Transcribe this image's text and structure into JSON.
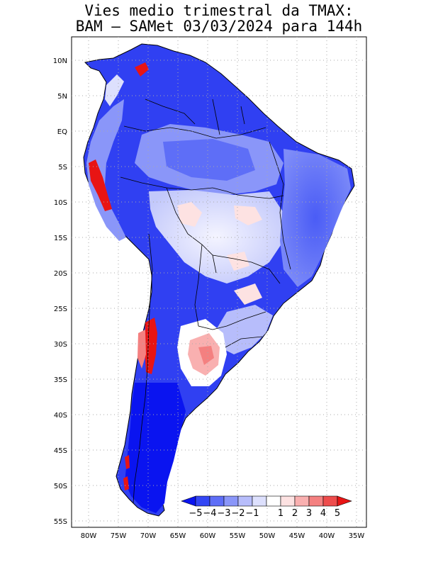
{
  "title_line1": "Vies medio trimestral da TMAX:",
  "title_line2": "BAM – SAMet 03/03/2024  para 144h",
  "map": {
    "lat_labels": [
      "10N",
      "5N",
      "EQ",
      "5S",
      "10S",
      "15S",
      "20S",
      "25S",
      "30S",
      "35S",
      "40S",
      "45S",
      "50S",
      "55S"
    ],
    "lon_labels": [
      "80W",
      "75W",
      "70W",
      "65W",
      "60W",
      "55W",
      "50W",
      "45W",
      "40W",
      "35W"
    ],
    "grid": true,
    "grid_style": "dotted"
  },
  "colorbar": {
    "labels": [
      "−5",
      "−4",
      "−3",
      "−2",
      "−1",
      "1",
      "2",
      "3",
      "4",
      "5"
    ],
    "colors": [
      "#0a14f0",
      "#3346f5",
      "#5e6ef7",
      "#8a96f9",
      "#b7bdfb",
      "#dde0fd",
      "#ffffff",
      "#fde2e2",
      "#f9b0b0",
      "#f48080",
      "#ee4c4c",
      "#e81414"
    ]
  }
}
